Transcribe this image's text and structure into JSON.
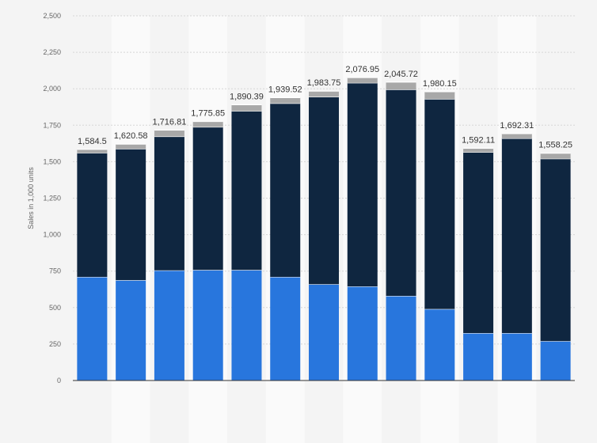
{
  "chart_data": {
    "type": "bar",
    "stacked": true,
    "title": "",
    "xlabel": "",
    "ylabel": "Sales in 1,000 units",
    "ylim": [
      0,
      2500
    ],
    "yticks": [
      0,
      250,
      500,
      750,
      1000,
      1250,
      1500,
      1750,
      2000,
      2250,
      2500
    ],
    "ytick_labels": [
      "0",
      "250",
      "500",
      "750",
      "1,000",
      "1,250",
      "1,500",
      "1,750",
      "2,000",
      "2,250",
      "2,500"
    ],
    "grid": true,
    "legend": "none",
    "categories": [
      "",
      "",
      "",
      "",
      "",
      "",
      "",
      "",
      "",
      "",
      "",
      "",
      ""
    ],
    "series": [
      {
        "color": "#2876dd",
        "values": [
          710,
          688,
          755,
          758,
          758,
          710,
          660,
          645,
          580,
          490,
          325,
          325,
          270
        ]
      },
      {
        "color": "#0f2640",
        "values": [
          850,
          900,
          918,
          980,
          1090,
          1190,
          1285,
          1395,
          1415,
          1440,
          1240,
          1335,
          1250
        ]
      },
      {
        "color": "#a8a8a8",
        "values": [
          24.5,
          32.58,
          43.81,
          37.85,
          42.39,
          39.52,
          38.75,
          36.95,
          50.72,
          50.15,
          27.11,
          32.31,
          38.25
        ]
      }
    ],
    "totals": [
      1584.5,
      1620.58,
      1716.81,
      1775.85,
      1890.39,
      1939.52,
      1983.75,
      2076.95,
      2045.72,
      1980.15,
      1592.11,
      1692.31,
      1558.25
    ],
    "total_labels": [
      "1,584.5",
      "1,620.58",
      "1,716.81",
      "1,775.85",
      "1,890.39",
      "1,939.52",
      "1,983.75",
      "2,076.95",
      "2,045.72",
      "1,980.15",
      "1,592.11",
      "1,692.31",
      "1,558.25"
    ],
    "colors": {
      "background": "#f4f4f4",
      "band": "#fafafa",
      "gridline": "#d6d6d6",
      "axis": "#333333"
    }
  }
}
